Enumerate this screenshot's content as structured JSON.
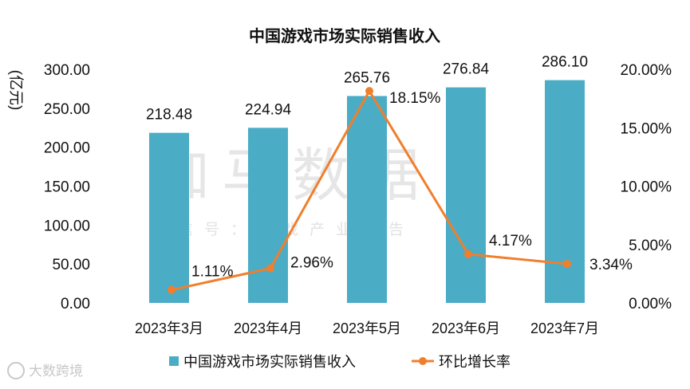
{
  "chart_data": {
    "type": "bar",
    "title": "中国游戏市场实际销售收入",
    "ylabel": "(亿元)",
    "categories": [
      "2023年3月",
      "2023年4月",
      "2023年5月",
      "2023年6月",
      "2023年7月"
    ],
    "ylim": [
      0,
      300
    ],
    "yticks": [
      "0.00",
      "50.00",
      "100.00",
      "150.00",
      "200.00",
      "250.00",
      "300.00"
    ],
    "y2lim": [
      0,
      20
    ],
    "y2ticks": [
      "0.00%",
      "5.00%",
      "10.00%",
      "15.00%",
      "20.00%"
    ],
    "series": [
      {
        "name": "中国游戏市场实际销售收入",
        "type": "bar",
        "axis": "left",
        "color": "#4bacc6",
        "values": [
          218.48,
          224.94,
          265.76,
          276.84,
          286.1
        ],
        "labels": [
          "218.48",
          "224.94",
          "265.76",
          "276.84",
          "286.10"
        ]
      },
      {
        "name": "环比增长率",
        "type": "line",
        "axis": "right",
        "color": "#f07f2c",
        "values": [
          1.11,
          2.96,
          18.15,
          4.17,
          3.34
        ],
        "labels": [
          "1.11%",
          "2.96%",
          "18.15%",
          "4.17%",
          "3.34%"
        ]
      }
    ],
    "legend_position": "bottom",
    "grid": false
  },
  "watermark": {
    "main": "伽马数据",
    "sub": "微信号：游戏产业报告"
  },
  "corner_logo": "大数跨境"
}
